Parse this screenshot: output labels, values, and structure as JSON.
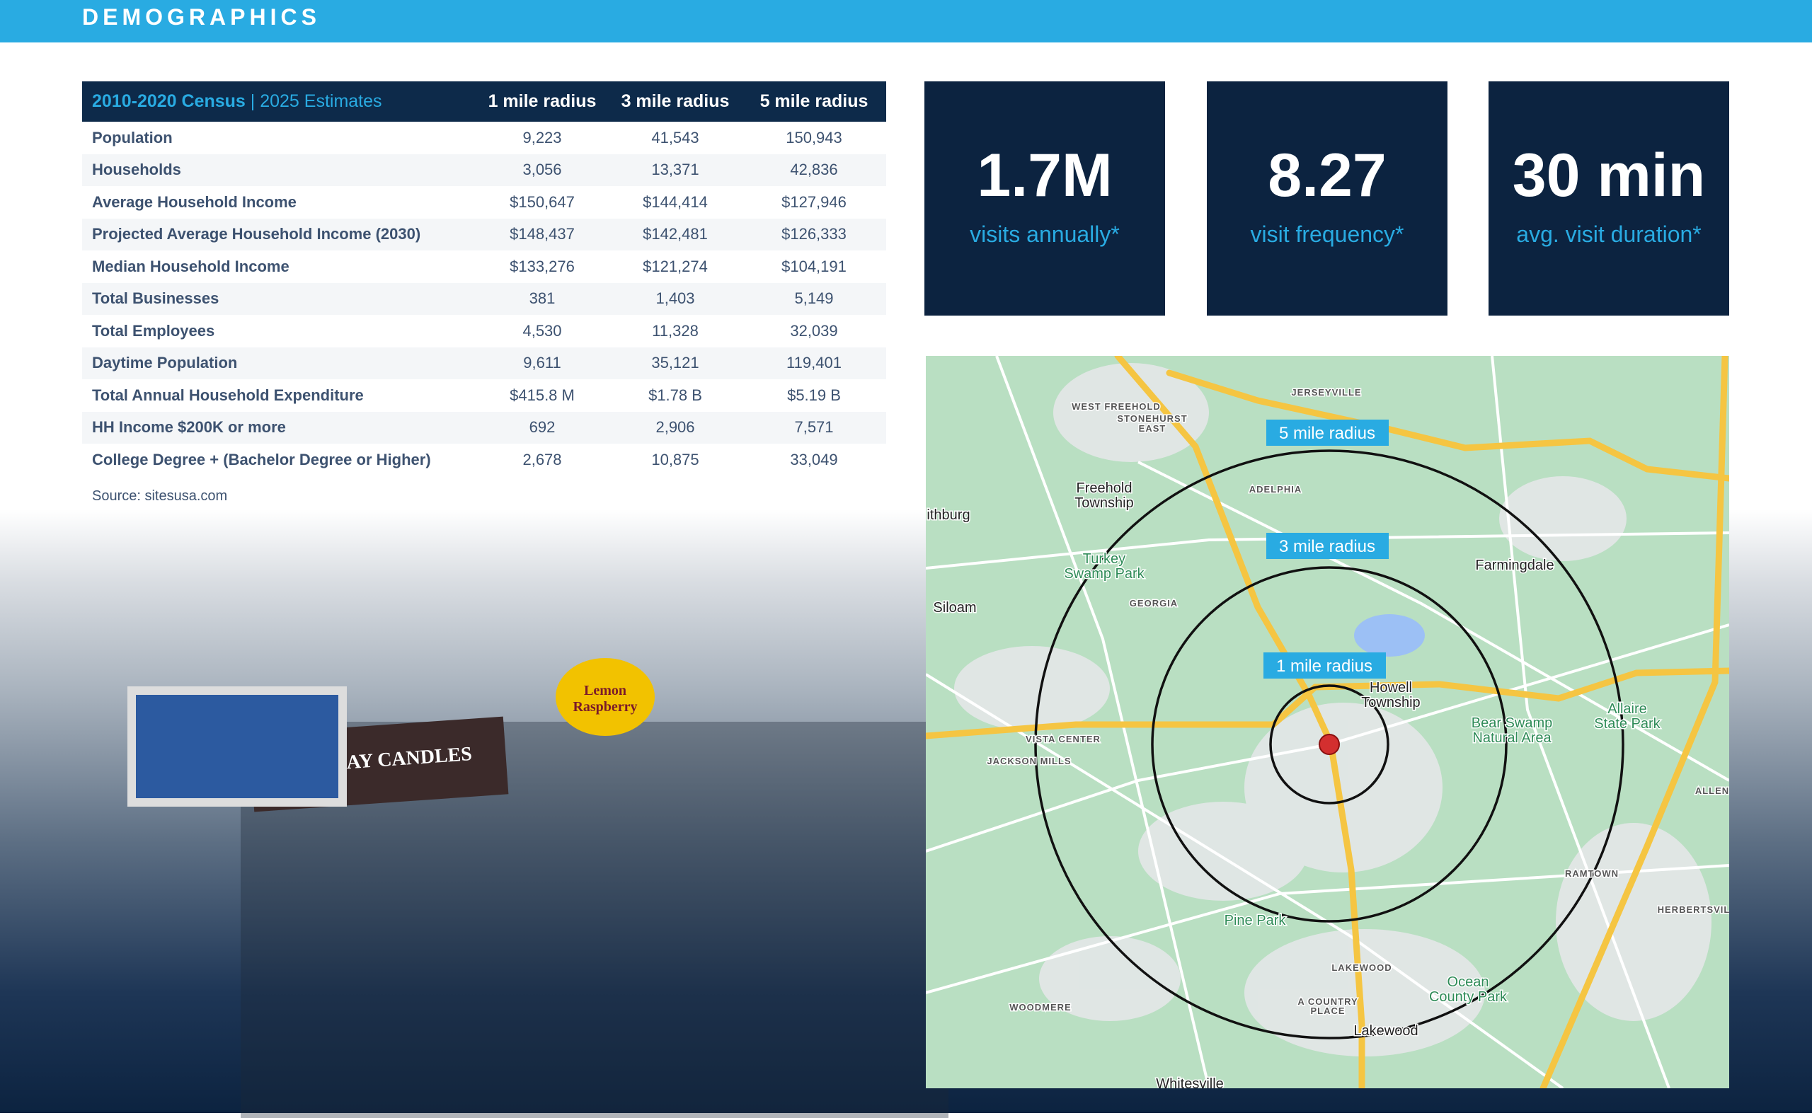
{
  "header": {
    "title": "DEMOGRAPHICS"
  },
  "table": {
    "title_census": "2010-2020 Census",
    "title_sep": " | ",
    "title_estimates": "2025 Estimates",
    "columns": [
      "1 mile radius",
      "3 mile radius",
      "5 mile radius"
    ],
    "rows": [
      {
        "label": "Population",
        "values": [
          "9,223",
          "41,543",
          "150,943"
        ]
      },
      {
        "label": "Households",
        "values": [
          "3,056",
          "13,371",
          "42,836"
        ]
      },
      {
        "label": "Average Household Income",
        "values": [
          "$150,647",
          "$144,414",
          "$127,946"
        ]
      },
      {
        "label": "Projected Average Household Income (2030)",
        "values": [
          "$148,437",
          "$142,481",
          "$126,333"
        ]
      },
      {
        "label": "Median Household Income",
        "values": [
          "$133,276",
          "$121,274",
          "$104,191"
        ]
      },
      {
        "label": "Total Businesses",
        "values": [
          "381",
          "1,403",
          "5,149"
        ]
      },
      {
        "label": "Total Employees",
        "values": [
          "4,530",
          "11,328",
          "32,039"
        ]
      },
      {
        "label": "Daytime Population",
        "values": [
          "9,611",
          "35,121",
          "119,401"
        ]
      },
      {
        "label": "Total Annual Household Expenditure",
        "values": [
          "$415.8 M",
          "$1.78 B",
          "$5.19 B"
        ]
      },
      {
        "label": "HH Income $200K or more",
        "values": [
          "692",
          "2,906",
          "7,571"
        ]
      },
      {
        "label": "College Degree + (Bachelor Degree or Higher)",
        "values": [
          "2,678",
          "10,875",
          "33,049"
        ]
      }
    ],
    "source": "Source: sitesusa.com"
  },
  "stats": [
    {
      "value": "1.7M",
      "label": "visits annually*"
    },
    {
      "value": "8.27",
      "label": "visit frequency*"
    },
    {
      "value": "30 min",
      "label": "avg. visit duration*"
    }
  ],
  "photo": {
    "sign": "BIRTHDAY CANDLES",
    "flavor": "Lemon Raspberry"
  },
  "map": {
    "radius_labels": [
      "5 mile radius",
      "3 mile radius",
      "1 mile radius"
    ],
    "place_labels": [
      "JERSEYVILLE",
      "WEST FREEHOLD",
      "STONEHURST",
      "EAST",
      "Freehold",
      "Township",
      "ADELPHIA",
      "ithburg",
      "Turkey",
      "Swamp Park",
      "GEORGIA",
      "Siloam",
      "Farmingdale",
      "Howell",
      "Township",
      "Bear Swamp",
      "Natural Area",
      "Allaire",
      "State Park",
      "VISTA CENTER",
      "JACKSON MILLS",
      "RAMTOWN",
      "HERBERTSVIL",
      "Pine Park",
      "LAKEWOOD",
      "A COUNTRY",
      "PLACE",
      "WOODMERE",
      "Ocean",
      "County Park",
      "Lakewood",
      "Whitesville",
      "ALLEN"
    ],
    "colors": {
      "land": "#b9dfc2",
      "major_road": "#f5c542",
      "minor_road": "#ffffff",
      "circle": "#111111",
      "label_bg": "#29abe2",
      "pin": "#d32f2f"
    }
  }
}
